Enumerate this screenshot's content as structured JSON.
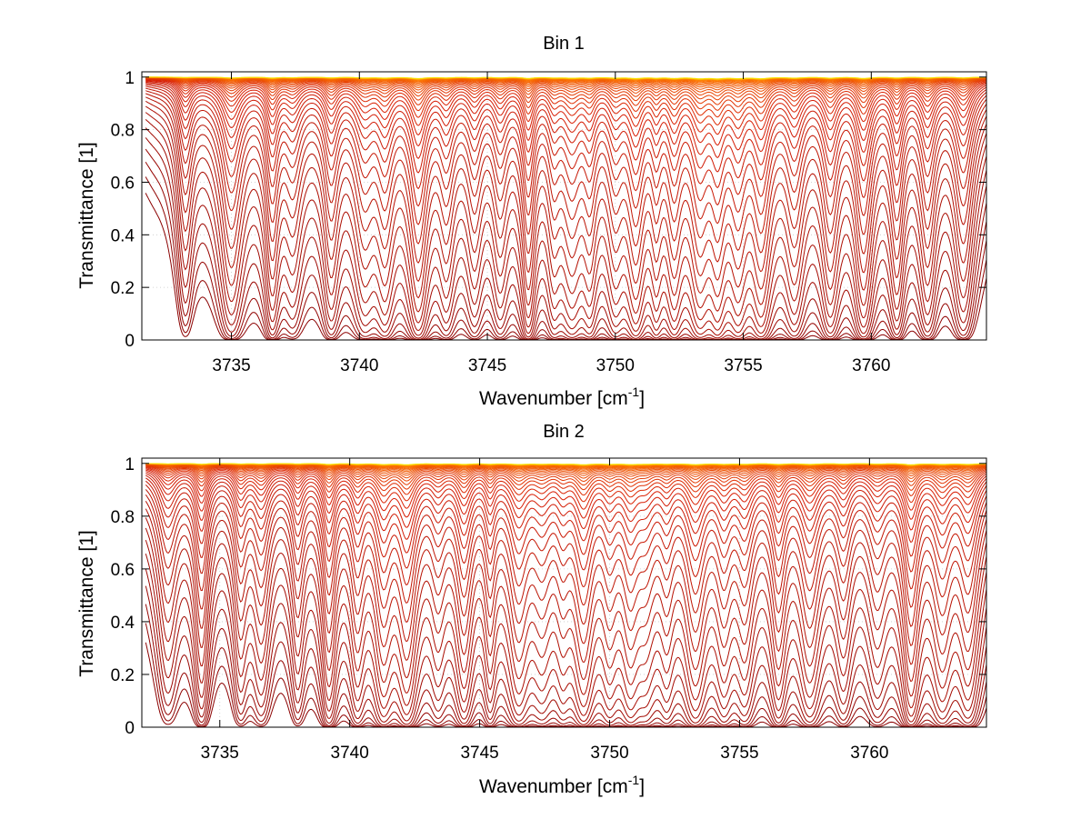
{
  "chart_data": [
    {
      "type": "line",
      "title": "Bin 1",
      "xlabel": "Wavenumber [cm",
      "xlabel_sup": "-1",
      "xlabel_end": "]",
      "ylabel": "Transmittance [1]",
      "xlim": [
        3731.5,
        3764.5
      ],
      "ylim": [
        0,
        1.02
      ],
      "xticks": [
        3735,
        3740,
        3745,
        3750,
        3755,
        3760
      ],
      "xtick_labels": [
        "3735",
        "3740",
        "3745",
        "3750",
        "3755",
        "3760"
      ],
      "yticks": [
        0,
        0.2,
        0.4,
        0.6,
        0.8,
        1
      ],
      "ytick_labels": [
        "0",
        "0.2",
        "0.4",
        "0.6",
        "0.8",
        "1"
      ],
      "grid": true,
      "series_count": 40,
      "line_envelope": "stacked transmittance spectra from ~0 to 1; dark red (low) to orange/yellow (high)",
      "absorption_line_centers": [
        3733.2,
        3735.0,
        3736.6,
        3737.4,
        3738.9,
        3740.2,
        3741.0,
        3742.3,
        3743.4,
        3744.5,
        3745.5,
        3746.6,
        3747.6,
        3748.3,
        3749.0,
        3750.0,
        3750.8,
        3751.6,
        3752.3,
        3753.3,
        3754.0,
        3754.8,
        3755.7,
        3757.0,
        3758.4,
        3759.7,
        3761.0,
        3762.2,
        3763.6
      ],
      "colors": {
        "low": "#8b0000",
        "mid": "#d81e05",
        "high": "#ff7a00",
        "top": "#f7e200"
      }
    },
    {
      "type": "line",
      "title": "Bin 2",
      "xlabel": "Wavenumber [cm",
      "xlabel_sup": "-1",
      "xlabel_end": "]",
      "ylabel": "Transmittance [1]",
      "xlim": [
        3732,
        3764.5
      ],
      "ylim": [
        0,
        1.02
      ],
      "xticks": [
        3735,
        3740,
        3745,
        3750,
        3755,
        3760
      ],
      "xtick_labels": [
        "3735",
        "3740",
        "3745",
        "3750",
        "3755",
        "3760"
      ],
      "yticks": [
        0,
        0.2,
        0.4,
        0.6,
        0.8,
        1
      ],
      "ytick_labels": [
        "0",
        "0.2",
        "0.4",
        "0.6",
        "0.8",
        "1"
      ],
      "grid": true,
      "series_count": 40,
      "line_envelope": "stacked transmittance spectra from ~0 to 1; dark red (low) to orange/yellow (high)",
      "absorption_line_centers": [
        3733.0,
        3734.3,
        3735.8,
        3736.6,
        3738.0,
        3739.2,
        3740.3,
        3741.3,
        3742.2,
        3743.4,
        3744.4,
        3745.4,
        3746.5,
        3747.4,
        3748.2,
        3749.0,
        3750.0,
        3750.8,
        3751.4,
        3752.2,
        3753.3,
        3754.4,
        3755.2,
        3756.5,
        3757.7,
        3759.0,
        3760.3,
        3761.6,
        3762.8,
        3763.8
      ],
      "colors": {
        "low": "#8b0000",
        "mid": "#d81e05",
        "high": "#ff7a00",
        "top": "#f7e200"
      }
    }
  ]
}
